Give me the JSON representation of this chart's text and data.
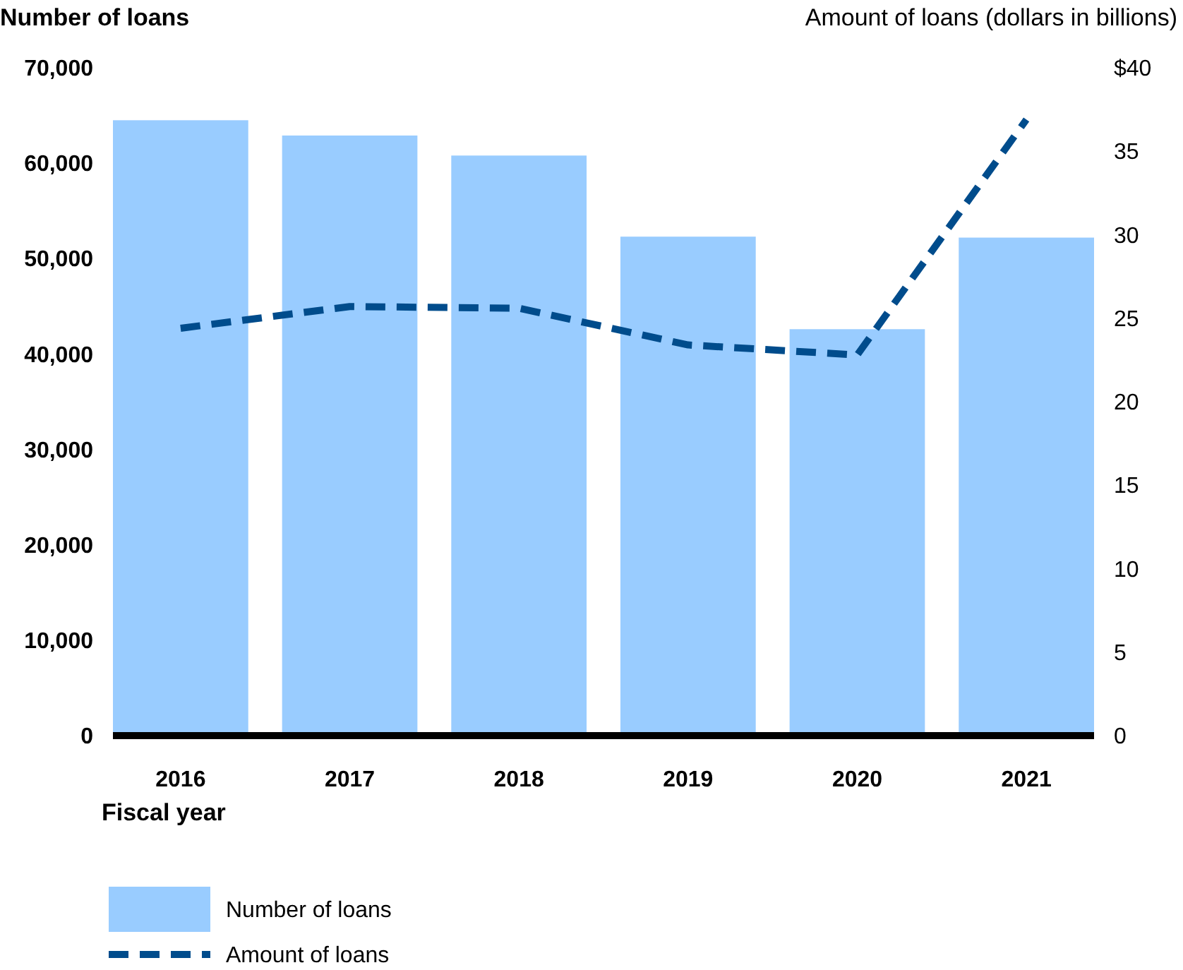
{
  "chart_data": {
    "type": "bar",
    "ylabel": "Number of loans",
    "y2label": "Amount of loans (dollars in billions)",
    "xlabel": "Fiscal year",
    "categories": [
      "2016",
      "2017",
      "2018",
      "2019",
      "2020",
      "2021"
    ],
    "series": [
      {
        "name": "Number of loans",
        "color": "#99ccff",
        "values": [
          64500,
          62900,
          60800,
          52300,
          42600,
          52200
        ]
      },
      {
        "name": "Amount of loans",
        "type": "line",
        "axis": "y2",
        "color": "#004c8c",
        "line_style": "dashed",
        "values": [
          24.4,
          25.7,
          25.6,
          23.4,
          22.8,
          36.9
        ]
      }
    ],
    "ylim": [
      0,
      70000
    ],
    "yticks": [
      {
        "value": 0,
        "label": "0"
      },
      {
        "value": 10000,
        "label": "10,000"
      },
      {
        "value": 20000,
        "label": "20,000"
      },
      {
        "value": 30000,
        "label": "30,000"
      },
      {
        "value": 40000,
        "label": "40,000"
      },
      {
        "value": 50000,
        "label": "50,000"
      },
      {
        "value": 60000,
        "label": "60,000"
      },
      {
        "value": 70000,
        "label": "70,000"
      }
    ],
    "y2lim": [
      0,
      40
    ],
    "y2ticks": [
      0,
      5,
      10,
      15,
      20,
      25,
      30,
      35,
      {
        "value": 40,
        "label": "$40"
      }
    ],
    "grid": false,
    "legend": "bottom"
  }
}
